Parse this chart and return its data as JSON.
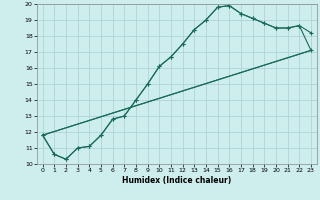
{
  "xlabel": "Humidex (Indice chaleur)",
  "xlim": [
    -0.5,
    23.5
  ],
  "ylim": [
    10,
    20
  ],
  "yticks": [
    10,
    11,
    12,
    13,
    14,
    15,
    16,
    17,
    18,
    19,
    20
  ],
  "xticks": [
    0,
    1,
    2,
    3,
    4,
    5,
    6,
    7,
    8,
    9,
    10,
    11,
    12,
    13,
    14,
    15,
    16,
    17,
    18,
    19,
    20,
    21,
    22,
    23
  ],
  "bg_color": "#cdeeed",
  "line_color": "#1a6b5a",
  "grid_color": "#aacfcf",
  "line1_y": [
    11.8,
    10.6,
    10.3,
    11.0,
    11.1,
    11.8,
    12.8,
    13.0,
    14.0,
    15.0,
    16.1,
    16.7,
    17.5,
    18.4,
    19.0,
    19.8,
    19.9,
    19.4,
    19.1,
    18.8,
    18.5,
    18.5,
    18.65,
    18.2
  ],
  "line2_y": [
    11.8,
    10.6,
    10.3,
    11.0,
    11.1,
    11.8,
    12.8,
    13.0,
    14.0,
    15.0,
    16.1,
    16.7,
    17.5,
    18.4,
    19.0,
    19.8,
    19.9,
    19.4,
    19.1,
    18.8,
    18.5,
    18.5,
    18.65,
    17.1
  ],
  "line3_y": [
    11.8,
    17.1
  ],
  "line4_y": [
    11.8,
    17.1
  ]
}
